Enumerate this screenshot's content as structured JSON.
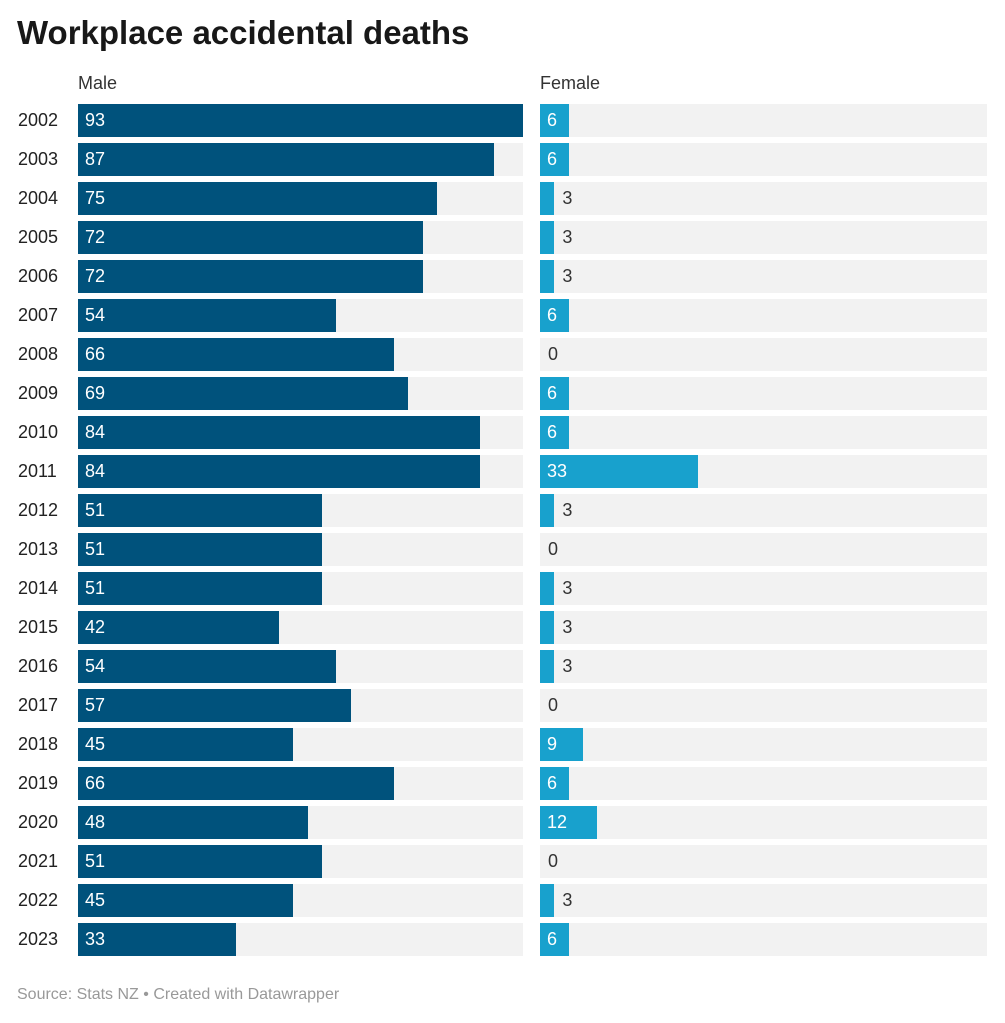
{
  "chart_data": {
    "type": "bar",
    "title": "Workplace accidental deaths",
    "categories": [
      "2002",
      "2003",
      "2004",
      "2005",
      "2006",
      "2007",
      "2008",
      "2009",
      "2010",
      "2011",
      "2012",
      "2013",
      "2014",
      "2015",
      "2016",
      "2017",
      "2018",
      "2019",
      "2020",
      "2021",
      "2022",
      "2023"
    ],
    "series": [
      {
        "name": "Male",
        "color": "#00527c",
        "values": [
          93,
          87,
          75,
          72,
          72,
          54,
          66,
          69,
          84,
          84,
          51,
          51,
          51,
          42,
          54,
          57,
          45,
          66,
          48,
          51,
          45,
          33
        ]
      },
      {
        "name": "Female",
        "color": "#18a1cd",
        "values": [
          6,
          6,
          3,
          3,
          3,
          6,
          0,
          6,
          6,
          33,
          3,
          0,
          3,
          3,
          3,
          0,
          9,
          6,
          12,
          0,
          3,
          6
        ]
      }
    ],
    "xlim": [
      0,
      93
    ],
    "source": "Source: Stats NZ • Created with Datawrapper"
  }
}
